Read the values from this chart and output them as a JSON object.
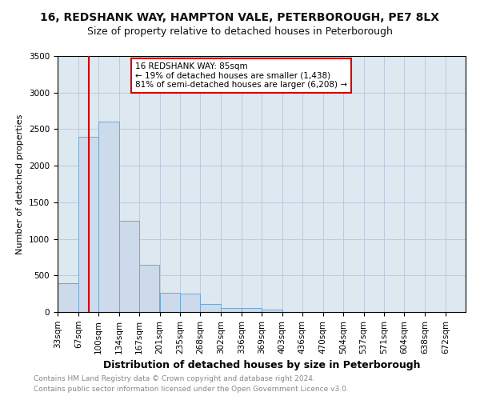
{
  "title1": "16, REDSHANK WAY, HAMPTON VALE, PETERBOROUGH, PE7 8LX",
  "title2": "Size of property relative to detached houses in Peterborough",
  "xlabel": "Distribution of detached houses by size in Peterborough",
  "ylabel": "Number of detached properties",
  "footer1": "Contains HM Land Registry data © Crown copyright and database right 2024.",
  "footer2": "Contains public sector information licensed under the Open Government Licence v3.0.",
  "annotation_line1": "16 REDSHANK WAY: 85sqm",
  "annotation_line2": "← 19% of detached houses are smaller (1,438)",
  "annotation_line3": "81% of semi-detached houses are larger (6,208) →",
  "property_size": 85,
  "bar_color": "#ccdaeb",
  "bar_edgecolor": "#6fa8d0",
  "redline_color": "#cc0000",
  "annotation_box_facecolor": "#ffffff",
  "annotation_box_edgecolor": "#cc0000",
  "grid_color": "#bbccdd",
  "background_color": "#dde8f0",
  "bins": [
    33,
    67,
    100,
    134,
    167,
    201,
    235,
    268,
    302,
    336,
    369,
    403,
    436,
    470,
    504,
    537,
    571,
    604,
    638,
    672,
    705
  ],
  "counts": [
    390,
    2390,
    2600,
    1250,
    640,
    260,
    250,
    105,
    55,
    50,
    30,
    0,
    0,
    0,
    0,
    0,
    0,
    0,
    0,
    0
  ],
  "ylim": [
    0,
    3500
  ],
  "yticks": [
    0,
    500,
    1000,
    1500,
    2000,
    2500,
    3000,
    3500
  ],
  "title1_fontsize": 10,
  "title2_fontsize": 9,
  "xlabel_fontsize": 9,
  "ylabel_fontsize": 8,
  "tick_fontsize": 7.5,
  "footer_fontsize": 6.5,
  "footer_color": "#888888"
}
